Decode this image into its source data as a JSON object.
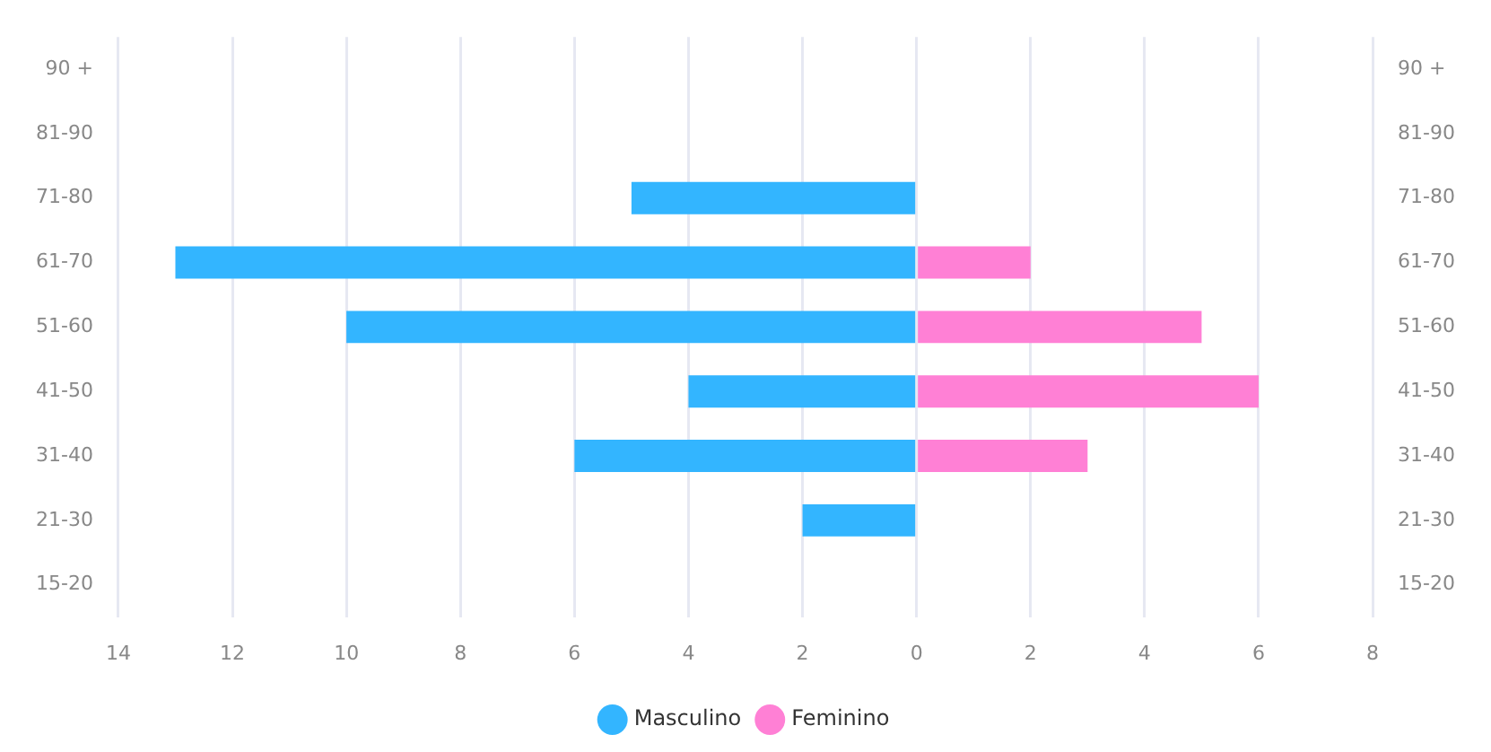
{
  "chart_data": {
    "type": "bar",
    "orientation": "horizontal",
    "stacked": true,
    "categories": [
      "90 +",
      "81-90",
      "71-80",
      "61-70",
      "51-60",
      "41-50",
      "31-40",
      "21-30",
      "15-20"
    ],
    "y2_categories": [
      "90 +",
      "81-90",
      "71-80",
      "61-70",
      "51-60",
      "41-50",
      "31-40",
      "21-30",
      "15-20"
    ],
    "series": [
      {
        "name": "Masculino",
        "color": "#33b5ff",
        "values": [
          null,
          null,
          -5,
          -13,
          -10,
          -4,
          -6,
          -2,
          null
        ]
      },
      {
        "name": "Feminino",
        "color": "#ff80d5",
        "values": [
          null,
          null,
          null,
          2,
          5,
          6,
          3,
          null,
          null
        ]
      }
    ],
    "xlim": [
      -14,
      8
    ],
    "xticks": [
      {
        "value": -14,
        "label": "14"
      },
      {
        "value": -12,
        "label": "12"
      },
      {
        "value": -10,
        "label": "10"
      },
      {
        "value": -8,
        "label": "8"
      },
      {
        "value": -6,
        "label": "6"
      },
      {
        "value": -4,
        "label": "4"
      },
      {
        "value": -2,
        "label": "2"
      },
      0,
      2,
      4,
      6,
      8
    ],
    "grid": "x",
    "legend": "bottom"
  }
}
